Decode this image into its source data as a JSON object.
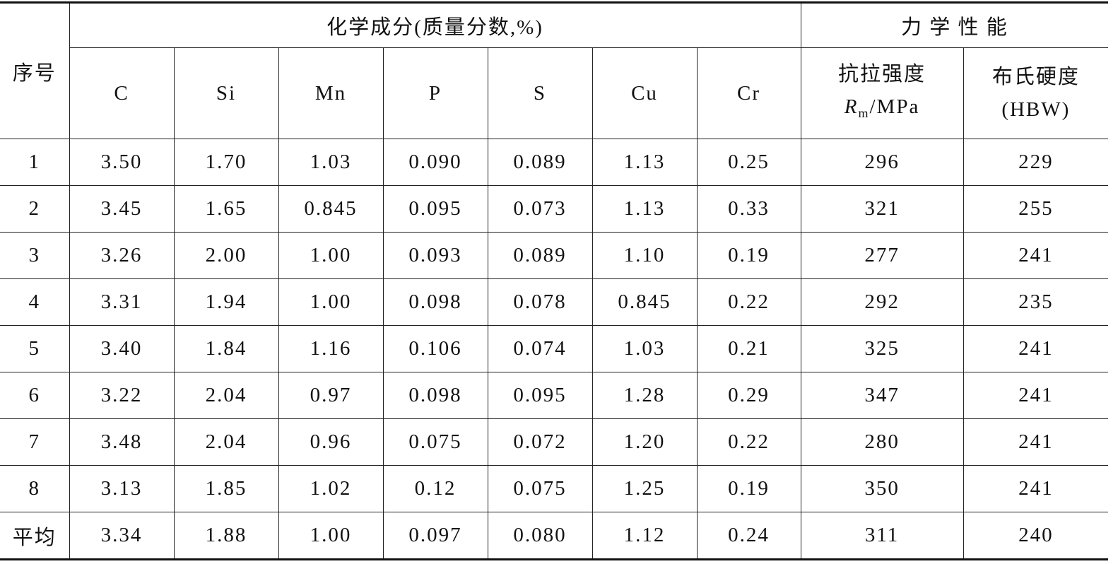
{
  "table": {
    "row_header": "序号",
    "group_headers": [
      "化学成分(质量分数,%)",
      "力 学 性 能"
    ],
    "columns": [
      "C",
      "Si",
      "Mn",
      "P",
      "S",
      "Cu",
      "Cr"
    ],
    "tensile": {
      "label": "抗拉强度",
      "symbol": "R",
      "subscript": "m",
      "unit": "/MPa"
    },
    "hardness": {
      "label": "布氏硬度",
      "unit": "(HBW)"
    },
    "rows": [
      [
        "1",
        "3.50",
        "1.70",
        "1.03",
        "0.090",
        "0.089",
        "1.13",
        "0.25",
        "296",
        "229"
      ],
      [
        "2",
        "3.45",
        "1.65",
        "0.845",
        "0.095",
        "0.073",
        "1.13",
        "0.33",
        "321",
        "255"
      ],
      [
        "3",
        "3.26",
        "2.00",
        "1.00",
        "0.093",
        "0.089",
        "1.10",
        "0.19",
        "277",
        "241"
      ],
      [
        "4",
        "3.31",
        "1.94",
        "1.00",
        "0.098",
        "0.078",
        "0.845",
        "0.22",
        "292",
        "235"
      ],
      [
        "5",
        "3.40",
        "1.84",
        "1.16",
        "0.106",
        "0.074",
        "1.03",
        "0.21",
        "325",
        "241"
      ],
      [
        "6",
        "3.22",
        "2.04",
        "0.97",
        "0.098",
        "0.095",
        "1.28",
        "0.29",
        "347",
        "241"
      ],
      [
        "7",
        "3.48",
        "2.04",
        "0.96",
        "0.075",
        "0.072",
        "1.20",
        "0.22",
        "280",
        "241"
      ],
      [
        "8",
        "3.13",
        "1.85",
        "1.02",
        "0.12",
        "0.075",
        "1.25",
        "0.19",
        "350",
        "241"
      ],
      [
        "平均",
        "3.34",
        "1.88",
        "1.00",
        "0.097",
        "0.080",
        "1.12",
        "0.24",
        "311",
        "240"
      ]
    ]
  }
}
